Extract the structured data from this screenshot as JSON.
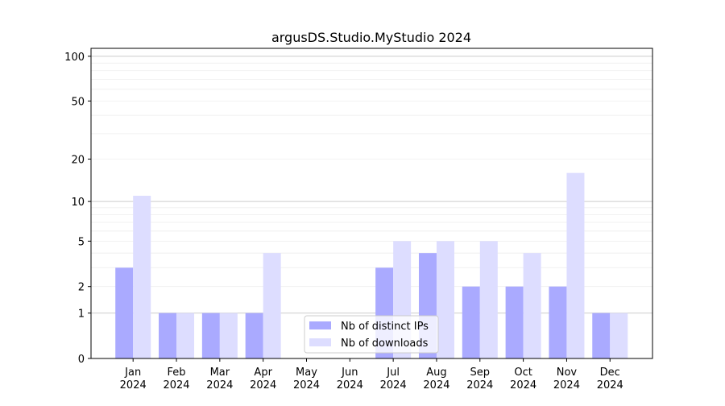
{
  "chart_data": {
    "type": "bar",
    "title": "argusDS.Studio.MyStudio 2024",
    "xlabel": "",
    "ylabel": "",
    "yscale": "log(1+y)",
    "ylim": [
      0,
      113
    ],
    "yticks": [
      0,
      1,
      2,
      5,
      10,
      20,
      50,
      100
    ],
    "grid": true,
    "legend_position": "lower-center",
    "categories": [
      "Jan\n2024",
      "Feb\n2024",
      "Mar\n2024",
      "Apr\n2024",
      "May\n2024",
      "Jun\n2024",
      "Jul\n2024",
      "Aug\n2024",
      "Sep\n2024",
      "Oct\n2024",
      "Nov\n2024",
      "Dec\n2024"
    ],
    "series": [
      {
        "name": "Nb of distinct IPs",
        "color": "#aaaaff",
        "values": [
          3,
          1,
          1,
          1,
          0,
          0,
          3,
          4,
          2,
          2,
          2,
          1
        ]
      },
      {
        "name": "Nb of downloads",
        "color": "#ddddff",
        "values": [
          11,
          1,
          1,
          4,
          0,
          0,
          5,
          5,
          5,
          4,
          16,
          1
        ]
      }
    ]
  }
}
